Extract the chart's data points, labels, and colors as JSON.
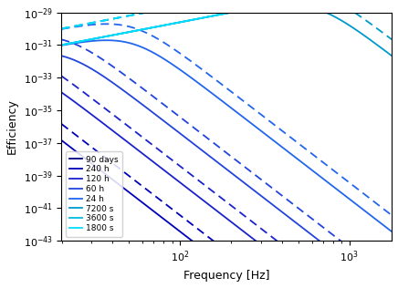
{
  "title": "",
  "xlabel": "Frequency [Hz]",
  "ylabel": "Efficiency",
  "xlim_log": [
    1.3,
    3.25
  ],
  "ylim_exp": [
    -43,
    -29
  ],
  "freq_min_log": 1.3,
  "freq_max_log": 3.25,
  "model": {
    "low_f_ref": 20.0,
    "low_f_val_log10": -31.0,
    "beta": 2.0,
    "n": 4.0,
    "m": 2.5,
    "tau": 4500000.0,
    "solid_shift_log10": 0.0,
    "dashed_shift_log10": 1.0
  },
  "series": [
    {
      "label": "90 days",
      "T_s": 7776000,
      "color": "#000080",
      "lw": 1.3
    },
    {
      "label": "240 h",
      "T_s": 864000,
      "color": "#0000BB",
      "lw": 1.3
    },
    {
      "label": "120 h",
      "T_s": 432000,
      "color": "#1B22CC",
      "lw": 1.3
    },
    {
      "label": "60 h",
      "T_s": 216000,
      "color": "#2244DD",
      "lw": 1.3
    },
    {
      "label": "24 h",
      "T_s": 86400,
      "color": "#2266EE",
      "lw": 1.3
    },
    {
      "label": "7200 s",
      "T_s": 7200,
      "color": "#0099CC",
      "lw": 1.3
    },
    {
      "label": "3600 s",
      "T_s": 3600,
      "color": "#00BBDD",
      "lw": 1.3
    },
    {
      "label": "1800 s",
      "T_s": 1800,
      "color": "#00DDFF",
      "lw": 1.3
    }
  ],
  "legend_loc": "lower left",
  "legend_fontsize": 6.5,
  "background_color": "#ffffff"
}
